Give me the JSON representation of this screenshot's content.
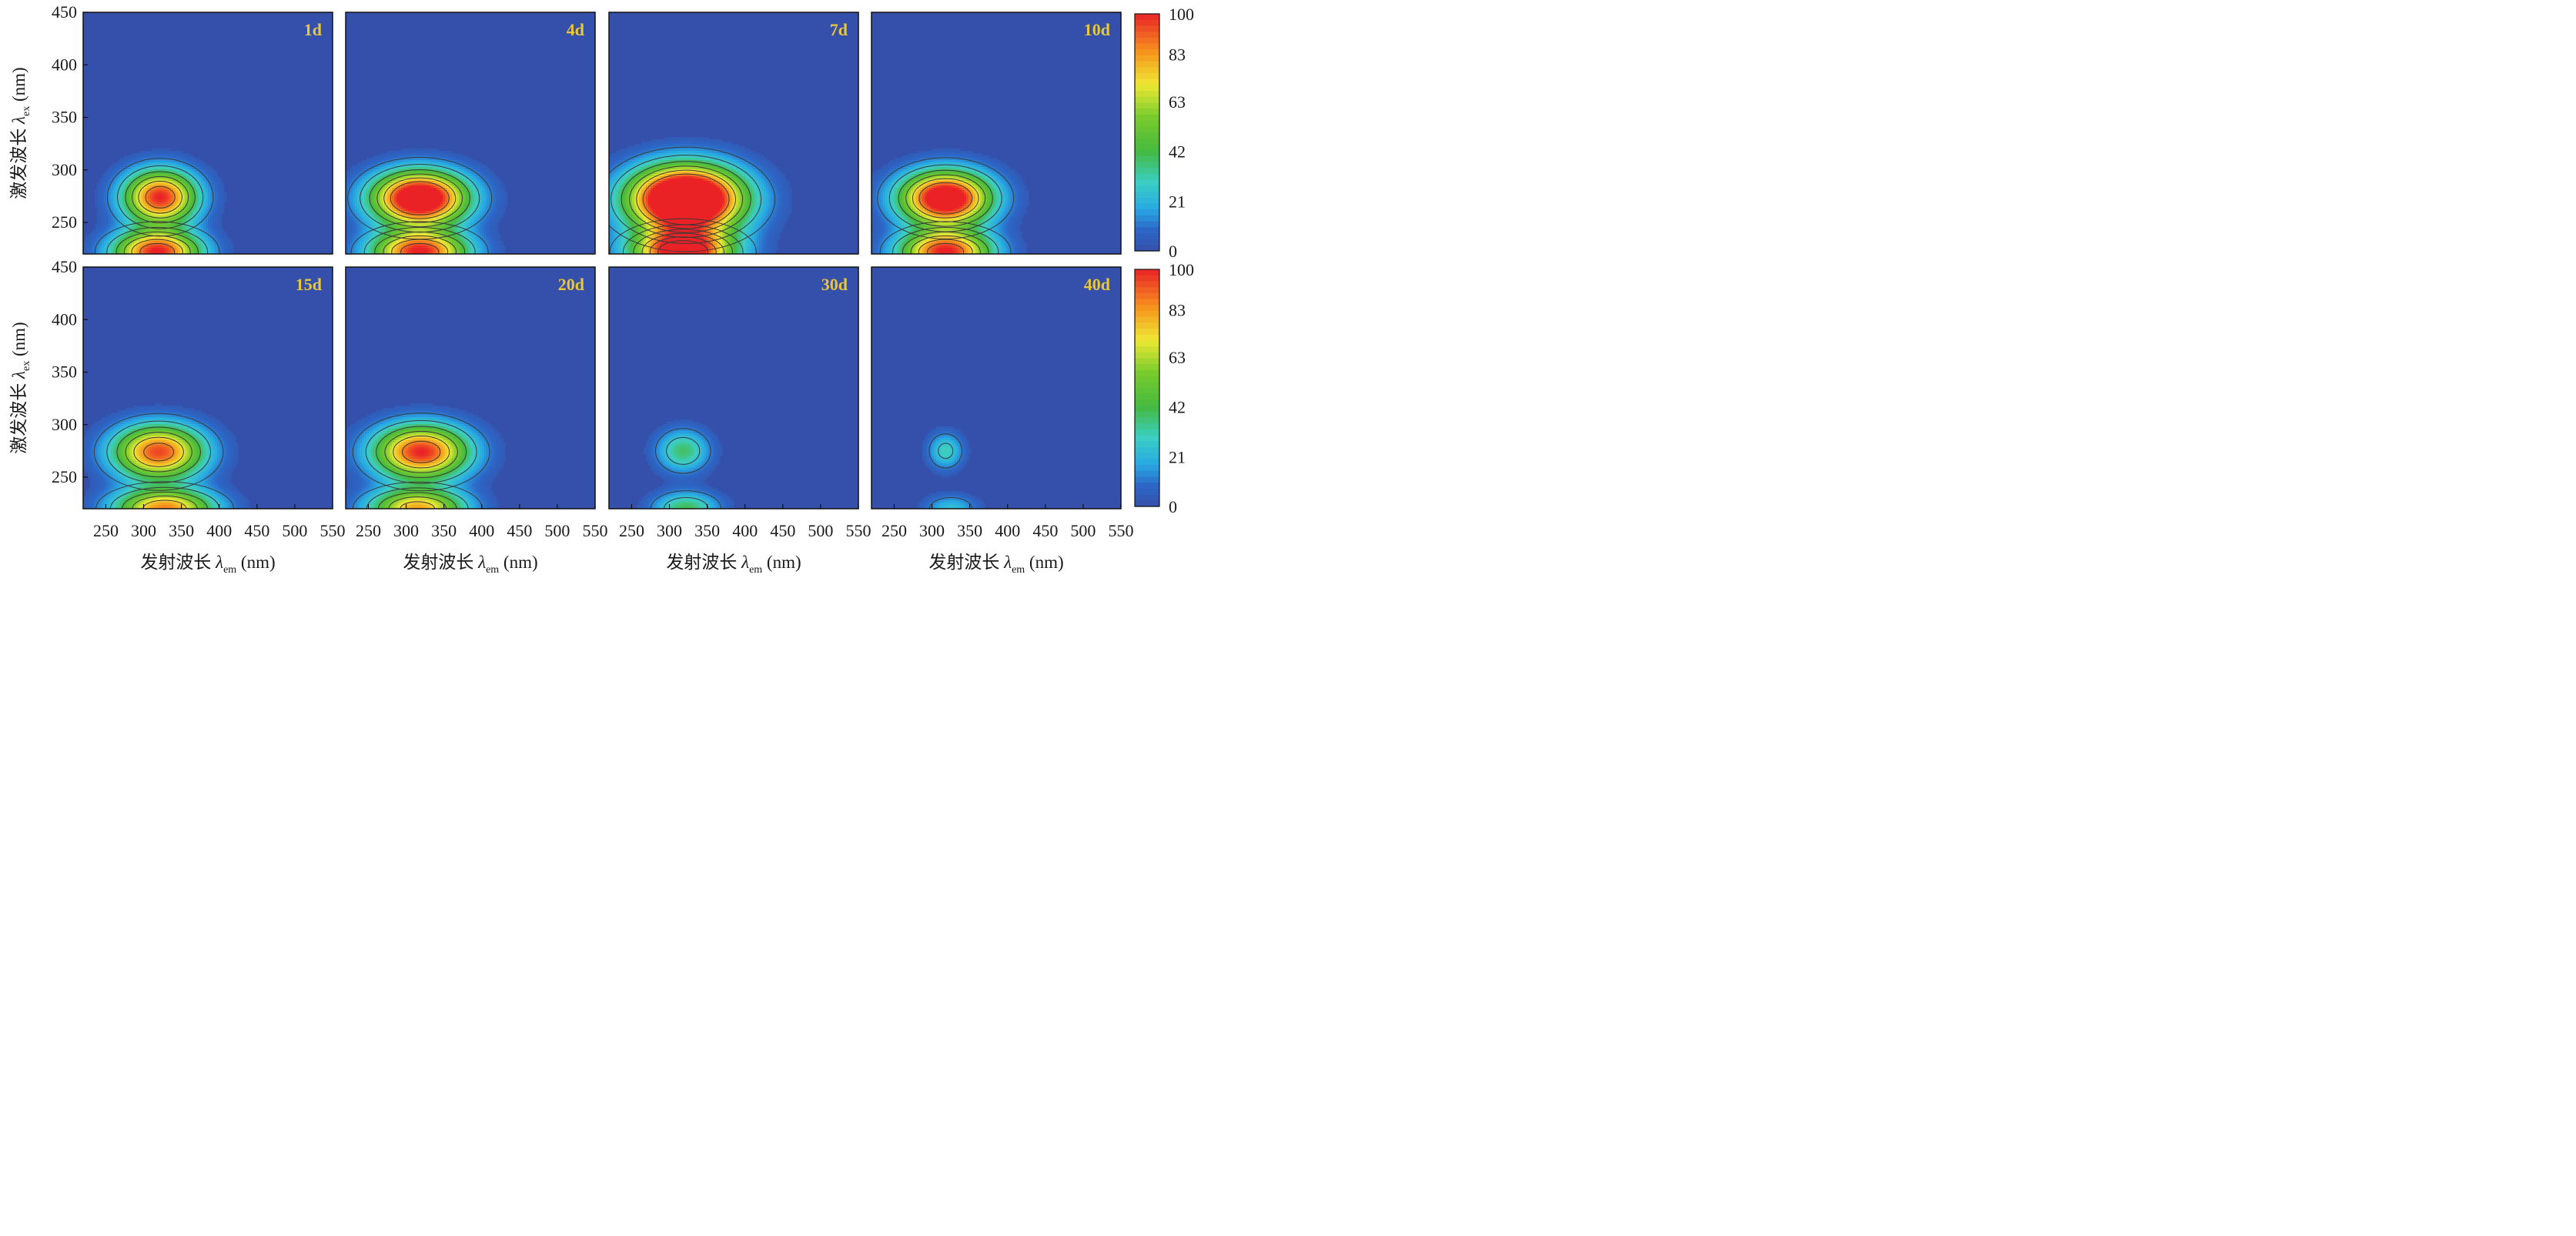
{
  "chart_data": {
    "type": "heatmap",
    "description_kind": "EEM fluorescence contour maps",
    "xlabel": {
      "prefix": "发射波长 ",
      "sym": "λ",
      "sub": "em",
      "unit": " (nm)"
    },
    "ylabel": {
      "prefix": "激发波长 ",
      "sym": "λ",
      "sub": "ex",
      "unit": " (nm)"
    },
    "xlim": [
      220,
      550
    ],
    "ylim": [
      220,
      450
    ],
    "xticks": [
      250,
      300,
      350,
      400,
      450,
      500,
      550
    ],
    "yticks": [
      250,
      300,
      350,
      400,
      450
    ],
    "colorbar": {
      "range": [
        0,
        100
      ],
      "ticks": [
        0,
        21,
        42,
        63,
        83,
        100
      ]
    },
    "grid": false,
    "panels": [
      {
        "label": "1d",
        "peaks": [
          {
            "em": 322,
            "ex": 274,
            "amp": 100,
            "sx": 34,
            "sy": 18
          },
          {
            "em": 318,
            "ex": 222,
            "amp": 100,
            "sx": 40,
            "sy": 14
          }
        ]
      },
      {
        "label": "4d",
        "peaks": [
          {
            "em": 318,
            "ex": 273,
            "amp": 125,
            "sx": 44,
            "sy": 18
          },
          {
            "em": 318,
            "ex": 222,
            "amp": 100,
            "sx": 44,
            "sy": 14
          }
        ]
      },
      {
        "label": "7d",
        "peaks": [
          {
            "em": 322,
            "ex": 272,
            "amp": 155,
            "sx": 52,
            "sy": 22
          },
          {
            "em": 318,
            "ex": 222,
            "amp": 110,
            "sx": 46,
            "sy": 15
          }
        ]
      },
      {
        "label": "10d",
        "peaks": [
          {
            "em": 318,
            "ex": 273,
            "amp": 120,
            "sx": 42,
            "sy": 18
          },
          {
            "em": 318,
            "ex": 222,
            "amp": 100,
            "sx": 42,
            "sy": 14
          }
        ]
      },
      {
        "label": "15d",
        "peaks": [
          {
            "em": 320,
            "ex": 274,
            "amp": 95,
            "sx": 42,
            "sy": 18
          },
          {
            "em": 328,
            "ex": 220,
            "amp": 85,
            "sx": 46,
            "sy": 13
          }
        ]
      },
      {
        "label": "20d",
        "peaks": [
          {
            "em": 320,
            "ex": 274,
            "amp": 100,
            "sx": 44,
            "sy": 18
          },
          {
            "em": 315,
            "ex": 220,
            "amp": 80,
            "sx": 44,
            "sy": 13
          }
        ]
      },
      {
        "label": "30d",
        "peaks": [
          {
            "em": 318,
            "ex": 275,
            "amp": 38,
            "sx": 24,
            "sy": 14
          },
          {
            "em": 322,
            "ex": 220,
            "amp": 40,
            "sx": 30,
            "sy": 11
          }
        ]
      },
      {
        "label": "40d",
        "peaks": [
          {
            "em": 318,
            "ex": 275,
            "amp": 30,
            "sx": 16,
            "sy": 12
          },
          {
            "em": 325,
            "ex": 220,
            "amp": 24,
            "sx": 24,
            "sy": 9
          }
        ]
      }
    ]
  }
}
